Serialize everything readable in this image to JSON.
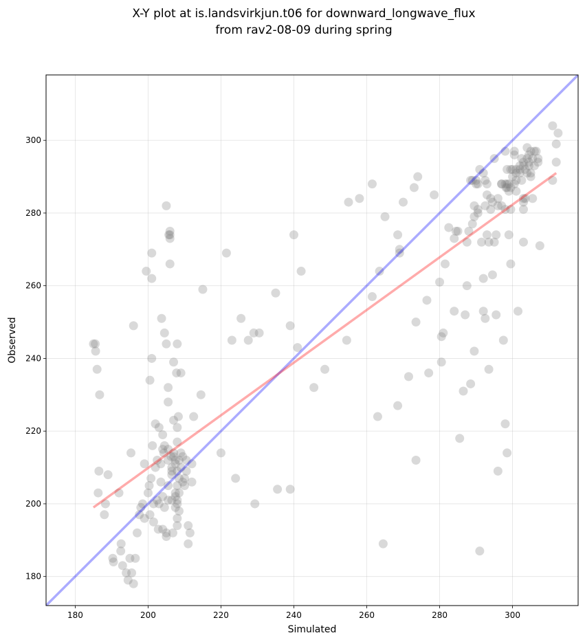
{
  "chart_data": {
    "type": "scatter",
    "title_line1": "X-Y plot at is.landsvirkjun.t06 for downward_longwave_flux",
    "title_line2": "from rav2-08-09 during spring",
    "xlabel": "Simulated",
    "ylabel": "Observed",
    "xlim": [
      172,
      318
    ],
    "ylim": [
      172,
      318
    ],
    "xticks": [
      180,
      200,
      220,
      240,
      260,
      280,
      300
    ],
    "yticks": [
      180,
      200,
      220,
      240,
      260,
      280,
      300
    ],
    "grid": true,
    "colors": {
      "points": "#808080",
      "identity_line": "#0000ff",
      "fit_line": "#ff0000"
    },
    "identity_line": {
      "x": [
        172,
        318
      ],
      "y": [
        172,
        318
      ]
    },
    "fit_line": {
      "x": [
        185,
        312
      ],
      "y": [
        199,
        291
      ]
    },
    "points": [
      [
        185,
        244
      ],
      [
        185.5,
        244
      ],
      [
        185.6,
        242
      ],
      [
        186,
        237
      ],
      [
        186.7,
        230
      ],
      [
        186.5,
        209
      ],
      [
        186.3,
        203
      ],
      [
        188.3,
        200
      ],
      [
        188,
        197
      ],
      [
        189,
        208
      ],
      [
        190.3,
        185
      ],
      [
        190.5,
        184
      ],
      [
        192,
        203
      ],
      [
        192.6,
        189
      ],
      [
        192.5,
        187
      ],
      [
        193,
        183
      ],
      [
        194,
        181
      ],
      [
        194.5,
        179
      ],
      [
        195,
        185
      ],
      [
        195.5,
        181
      ],
      [
        195.3,
        214
      ],
      [
        196,
        249
      ],
      [
        196,
        178
      ],
      [
        196.5,
        185
      ],
      [
        197,
        192
      ],
      [
        197.6,
        197
      ],
      [
        198,
        199
      ],
      [
        198.5,
        200
      ],
      [
        199,
        196
      ],
      [
        199,
        211
      ],
      [
        199.5,
        264
      ],
      [
        200,
        203
      ],
      [
        200.3,
        205
      ],
      [
        200.5,
        197
      ],
      [
        200.5,
        234
      ],
      [
        200.8,
        207
      ],
      [
        201,
        240
      ],
      [
        201,
        262
      ],
      [
        201,
        269
      ],
      [
        201.2,
        216
      ],
      [
        201.5,
        200
      ],
      [
        201.5,
        195
      ],
      [
        202,
        210
      ],
      [
        202,
        222
      ],
      [
        202.5,
        212
      ],
      [
        202.5,
        201
      ],
      [
        202.8,
        193
      ],
      [
        203,
        221
      ],
      [
        203,
        200
      ],
      [
        203.5,
        206
      ],
      [
        203.5,
        211
      ],
      [
        203.7,
        251
      ],
      [
        204,
        219
      ],
      [
        204,
        215
      ],
      [
        204,
        202
      ],
      [
        204,
        193
      ],
      [
        204.3,
        214
      ],
      [
        204.5,
        247
      ],
      [
        204.5,
        216
      ],
      [
        204.5,
        199
      ],
      [
        205,
        244
      ],
      [
        205,
        282
      ],
      [
        205,
        192
      ],
      [
        205,
        191
      ],
      [
        205.5,
        232
      ],
      [
        205.5,
        228
      ],
      [
        205.5,
        215
      ],
      [
        205.5,
        212
      ],
      [
        205.5,
        205
      ],
      [
        205.5,
        201
      ],
      [
        205.7,
        274
      ],
      [
        206,
        266
      ],
      [
        206,
        274
      ],
      [
        206,
        273
      ],
      [
        206,
        275
      ],
      [
        206.3,
        213
      ],
      [
        206.5,
        210
      ],
      [
        206.5,
        208
      ],
      [
        206.5,
        209
      ],
      [
        206.5,
        201
      ],
      [
        206.8,
        192
      ],
      [
        207,
        239
      ],
      [
        207,
        223
      ],
      [
        207,
        214
      ],
      [
        207,
        213
      ],
      [
        207.5,
        212
      ],
      [
        207.5,
        211
      ],
      [
        207.5,
        203
      ],
      [
        207.5,
        202
      ],
      [
        207.5,
        199
      ],
      [
        207.8,
        236
      ],
      [
        208,
        244
      ],
      [
        208,
        221
      ],
      [
        208,
        217
      ],
      [
        208,
        209
      ],
      [
        208,
        205
      ],
      [
        208,
        201
      ],
      [
        208,
        200
      ],
      [
        208,
        196
      ],
      [
        208,
        194
      ],
      [
        208.3,
        224
      ],
      [
        208.5,
        212
      ],
      [
        208.5,
        207
      ],
      [
        208.5,
        203
      ],
      [
        208.5,
        198
      ],
      [
        209,
        236
      ],
      [
        209,
        214
      ],
      [
        209,
        210
      ],
      [
        209.5,
        213
      ],
      [
        209.5,
        206
      ],
      [
        210,
        207
      ],
      [
        210,
        205
      ],
      [
        210.5,
        212
      ],
      [
        210.5,
        209
      ],
      [
        211,
        194
      ],
      [
        211,
        189
      ],
      [
        211.5,
        192
      ],
      [
        212,
        211
      ],
      [
        212,
        206
      ],
      [
        212.5,
        224
      ],
      [
        214.5,
        230
      ],
      [
        215,
        259
      ],
      [
        220,
        214
      ],
      [
        221.5,
        269
      ],
      [
        223,
        245
      ],
      [
        224,
        207
      ],
      [
        225.5,
        251
      ],
      [
        227.5,
        245
      ],
      [
        229,
        247
      ],
      [
        229.3,
        200
      ],
      [
        230.5,
        247
      ],
      [
        235,
        258
      ],
      [
        235.5,
        204
      ],
      [
        239,
        249
      ],
      [
        239,
        204
      ],
      [
        240,
        274
      ],
      [
        241,
        243
      ],
      [
        242,
        264
      ],
      [
        245.5,
        232
      ],
      [
        248.5,
        237
      ],
      [
        254.5,
        245
      ],
      [
        255,
        283
      ],
      [
        258,
        284
      ],
      [
        261.5,
        257
      ],
      [
        261.5,
        288
      ],
      [
        263,
        224
      ],
      [
        263.5,
        264
      ],
      [
        264.5,
        189
      ],
      [
        265,
        279
      ],
      [
        268.5,
        274
      ],
      [
        268.5,
        227
      ],
      [
        269,
        269
      ],
      [
        269,
        270
      ],
      [
        270,
        283
      ],
      [
        271.5,
        235
      ],
      [
        273,
        287
      ],
      [
        273.5,
        250
      ],
      [
        273.5,
        212
      ],
      [
        274,
        290
      ],
      [
        276.5,
        256
      ],
      [
        277,
        236
      ],
      [
        278.5,
        285
      ],
      [
        280,
        261
      ],
      [
        280.5,
        246
      ],
      [
        280.5,
        239
      ],
      [
        281,
        247
      ],
      [
        281.5,
        266
      ],
      [
        282.5,
        276
      ],
      [
        284,
        253
      ],
      [
        284,
        273
      ],
      [
        284.5,
        275
      ],
      [
        285,
        275
      ],
      [
        285.5,
        218
      ],
      [
        286.5,
        231
      ],
      [
        287,
        252
      ],
      [
        287.5,
        272
      ],
      [
        287.5,
        260
      ],
      [
        288,
        275
      ],
      [
        288.5,
        233
      ],
      [
        288.5,
        289
      ],
      [
        289,
        289
      ],
      [
        289,
        277
      ],
      [
        289.5,
        282
      ],
      [
        289.5,
        279
      ],
      [
        289.5,
        242
      ],
      [
        290,
        289
      ],
      [
        290,
        288
      ],
      [
        290.5,
        288
      ],
      [
        290.5,
        281
      ],
      [
        290.5,
        280
      ],
      [
        291,
        292
      ],
      [
        291,
        187
      ],
      [
        291.5,
        272
      ],
      [
        292,
        291
      ],
      [
        292,
        253
      ],
      [
        292,
        262
      ],
      [
        292.5,
        251
      ],
      [
        292.5,
        289
      ],
      [
        292.5,
        282
      ],
      [
        293,
        288
      ],
      [
        293,
        285
      ],
      [
        293,
        274
      ],
      [
        293.5,
        272
      ],
      [
        293.5,
        237
      ],
      [
        294,
        284
      ],
      [
        294,
        281
      ],
      [
        294.5,
        283
      ],
      [
        294.5,
        263
      ],
      [
        295,
        295
      ],
      [
        295,
        272
      ],
      [
        295.5,
        274
      ],
      [
        295.5,
        252
      ],
      [
        296,
        282
      ],
      [
        296,
        284
      ],
      [
        296,
        209
      ],
      [
        297,
        288
      ],
      [
        297,
        288
      ],
      [
        297,
        282
      ],
      [
        297.5,
        245
      ],
      [
        298,
        297
      ],
      [
        298,
        281
      ],
      [
        298,
        222
      ],
      [
        298.2,
        287
      ],
      [
        298.5,
        292
      ],
      [
        298.5,
        288
      ],
      [
        298.5,
        287
      ],
      [
        298.5,
        214
      ],
      [
        299,
        288
      ],
      [
        299,
        286
      ],
      [
        299,
        274
      ],
      [
        299.5,
        292
      ],
      [
        299.5,
        287
      ],
      [
        299.5,
        281
      ],
      [
        299.5,
        266
      ],
      [
        300,
        290
      ],
      [
        300,
        292
      ],
      [
        300.5,
        288
      ],
      [
        300.5,
        297
      ],
      [
        300.5,
        296
      ],
      [
        301,
        292
      ],
      [
        301,
        291
      ],
      [
        301,
        289
      ],
      [
        301,
        286
      ],
      [
        301.5,
        253
      ],
      [
        302,
        293
      ],
      [
        302,
        292
      ],
      [
        302,
        291
      ],
      [
        302.5,
        289
      ],
      [
        303,
        294
      ],
      [
        303,
        293
      ],
      [
        303,
        284
      ],
      [
        303,
        283
      ],
      [
        303,
        281
      ],
      [
        303,
        272
      ],
      [
        303.5,
        292
      ],
      [
        303.5,
        284
      ],
      [
        304,
        298
      ],
      [
        304,
        295
      ],
      [
        304,
        291
      ],
      [
        304.5,
        296
      ],
      [
        304.5,
        294
      ],
      [
        305,
        297
      ],
      [
        305,
        291
      ],
      [
        305,
        290
      ],
      [
        305.5,
        295
      ],
      [
        305.5,
        284
      ],
      [
        306,
        297
      ],
      [
        306,
        293
      ],
      [
        306.5,
        297
      ],
      [
        307,
        295
      ],
      [
        307,
        294
      ],
      [
        307.5,
        271
      ],
      [
        311,
        304
      ],
      [
        311,
        289
      ],
      [
        312,
        294
      ],
      [
        312,
        299
      ],
      [
        312.5,
        302
      ],
      [
        304.5,
        293
      ],
      [
        302.5,
        295
      ],
      [
        298,
        288
      ]
    ]
  }
}
